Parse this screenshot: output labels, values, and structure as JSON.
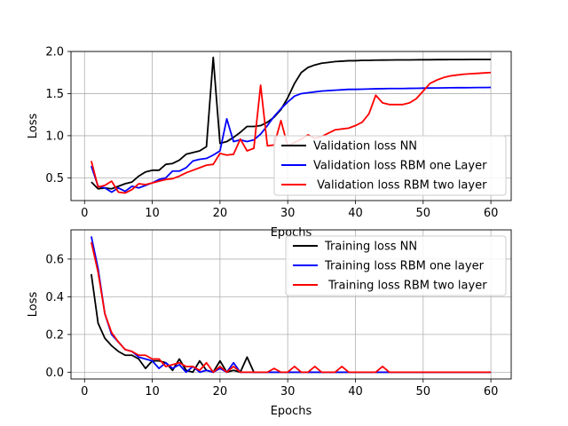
{
  "chart_data": [
    {
      "type": "line",
      "title": "",
      "xlabel": "Epochs",
      "ylabel": "Loss",
      "xlim": [
        -2,
        63
      ],
      "ylim": [
        0.23,
        2.0
      ],
      "xticks": [
        0,
        10,
        20,
        30,
        40,
        50,
        60
      ],
      "yticks": [
        0.5,
        1.0,
        1.5,
        2.0
      ],
      "ytick_labels": [
        "0.5",
        "1.0",
        "1.5",
        "2.0"
      ],
      "grid": true,
      "legend_placement": "lower-right",
      "x": [
        1,
        2,
        3,
        4,
        5,
        6,
        7,
        8,
        9,
        10,
        11,
        12,
        13,
        14,
        15,
        16,
        17,
        18,
        19,
        20,
        21,
        22,
        23,
        24,
        25,
        26,
        27,
        28,
        29,
        30,
        31,
        32,
        33,
        34,
        35,
        36,
        37,
        38,
        39,
        40,
        41,
        42,
        43,
        44,
        45,
        46,
        47,
        48,
        49,
        50,
        51,
        52,
        53,
        54,
        55,
        56,
        57,
        58,
        59,
        60
      ],
      "series": [
        {
          "name": "Validation loss NN",
          "color": "#000000",
          "values": [
            0.45,
            0.37,
            0.38,
            0.37,
            0.4,
            0.43,
            0.45,
            0.52,
            0.57,
            0.59,
            0.59,
            0.66,
            0.67,
            0.71,
            0.78,
            0.8,
            0.82,
            0.87,
            1.93,
            0.91,
            0.93,
            0.98,
            1.04,
            1.11,
            1.11,
            1.12,
            1.16,
            1.22,
            1.31,
            1.45,
            1.62,
            1.75,
            1.81,
            1.84,
            1.86,
            1.87,
            1.88,
            1.885,
            1.89,
            1.89,
            1.895,
            1.895,
            1.897,
            1.898,
            1.899,
            1.9,
            1.9,
            1.9,
            1.901,
            1.902,
            1.902,
            1.903,
            1.903,
            1.904,
            1.904,
            1.904,
            1.905,
            1.905,
            1.905,
            1.905
          ]
        },
        {
          "name": "Validation loss RBM one Layer",
          "color": "#0000ff",
          "values": [
            0.64,
            0.4,
            0.38,
            0.33,
            0.38,
            0.34,
            0.4,
            0.38,
            0.41,
            0.44,
            0.48,
            0.5,
            0.58,
            0.58,
            0.62,
            0.7,
            0.72,
            0.73,
            0.77,
            0.82,
            1.2,
            0.93,
            0.95,
            0.93,
            0.95,
            1.02,
            1.12,
            1.23,
            1.32,
            1.4,
            1.47,
            1.5,
            1.51,
            1.52,
            1.53,
            1.535,
            1.54,
            1.545,
            1.55,
            1.55,
            1.552,
            1.555,
            1.557,
            1.558,
            1.56,
            1.56,
            1.56,
            1.562,
            1.563,
            1.565,
            1.566,
            1.567,
            1.568,
            1.569,
            1.57,
            1.57,
            1.571,
            1.572,
            1.572,
            1.573
          ]
        },
        {
          "name": " Validation loss RBM two layer",
          "color": "#ff0000",
          "values": [
            0.7,
            0.39,
            0.41,
            0.46,
            0.33,
            0.32,
            0.36,
            0.43,
            0.42,
            0.44,
            0.46,
            0.48,
            0.49,
            0.52,
            0.56,
            0.59,
            0.62,
            0.65,
            0.66,
            0.79,
            0.77,
            0.78,
            0.96,
            0.82,
            0.85,
            1.6,
            0.88,
            0.89,
            1.18,
            0.88,
            0.92,
            0.96,
            1.01,
            0.97,
            0.99,
            1.03,
            1.07,
            1.08,
            1.09,
            1.12,
            1.16,
            1.26,
            1.48,
            1.39,
            1.37,
            1.37,
            1.37,
            1.39,
            1.44,
            1.53,
            1.62,
            1.66,
            1.69,
            1.71,
            1.72,
            1.73,
            1.735,
            1.74,
            1.745,
            1.75
          ]
        }
      ]
    },
    {
      "type": "line",
      "title": "",
      "xlabel": "Epochs",
      "ylabel": "Loss",
      "xlim": [
        -2,
        63
      ],
      "ylim": [
        -0.036,
        0.755
      ],
      "xticks": [
        0,
        10,
        20,
        30,
        40,
        50,
        60
      ],
      "yticks": [
        0.0,
        0.2,
        0.4,
        0.6
      ],
      "ytick_labels": [
        "0.0",
        "0.2",
        "0.4",
        "0.6"
      ],
      "grid": true,
      "legend_placement": "upper-right",
      "x": [
        1,
        2,
        3,
        4,
        5,
        6,
        7,
        8,
        9,
        10,
        11,
        12,
        13,
        14,
        15,
        16,
        17,
        18,
        19,
        20,
        21,
        22,
        23,
        24,
        25,
        26,
        27,
        28,
        29,
        30,
        31,
        32,
        33,
        34,
        35,
        36,
        37,
        38,
        39,
        40,
        41,
        42,
        43,
        44,
        45,
        46,
        47,
        48,
        49,
        50,
        51,
        52,
        53,
        54,
        55,
        56,
        57,
        58,
        59,
        60
      ],
      "series": [
        {
          "name": "Training loss NN",
          "color": "#000000",
          "values": [
            0.52,
            0.26,
            0.18,
            0.14,
            0.11,
            0.09,
            0.09,
            0.07,
            0.02,
            0.06,
            0.06,
            0.05,
            0.01,
            0.07,
            0.01,
            0.0,
            0.06,
            0.01,
            0.0,
            0.06,
            0.0,
            0.01,
            0.0,
            0.08,
            0.0,
            0.0,
            0.0,
            0.0,
            0.0,
            0.0,
            0.0,
            0.0,
            0.0,
            0.0,
            0.0,
            0.0,
            0.0,
            0.0,
            0.0,
            0.0,
            0.0,
            0.0,
            0.0,
            0.0,
            0.0,
            0.0,
            0.0,
            0.0,
            0.0,
            0.0,
            0.0,
            0.0,
            0.0,
            0.0,
            0.0,
            0.0,
            0.0,
            0.0,
            0.0,
            0.0
          ]
        },
        {
          "name": "Training loss RBM one layer",
          "color": "#0000ff",
          "values": [
            0.72,
            0.55,
            0.31,
            0.2,
            0.16,
            0.12,
            0.11,
            0.08,
            0.07,
            0.06,
            0.02,
            0.05,
            0.02,
            0.04,
            0.0,
            0.03,
            0.0,
            0.01,
            0.0,
            0.02,
            0.0,
            0.05,
            0.0,
            0.0,
            0.0,
            0.0,
            0.0,
            0.0,
            0.0,
            0.0,
            0.0,
            0.0,
            0.0,
            0.0,
            0.0,
            0.0,
            0.0,
            0.0,
            0.0,
            0.0,
            0.0,
            0.0,
            0.0,
            0.0,
            0.0,
            0.0,
            0.0,
            0.0,
            0.0,
            0.0,
            0.0,
            0.0,
            0.0,
            0.0,
            0.0,
            0.0,
            0.0,
            0.0,
            0.0,
            0.0
          ]
        },
        {
          "name": " Training loss RBM two layer",
          "color": "#ff0000",
          "values": [
            0.69,
            0.53,
            0.31,
            0.21,
            0.16,
            0.12,
            0.11,
            0.09,
            0.09,
            0.07,
            0.07,
            0.03,
            0.04,
            0.05,
            0.03,
            0.03,
            0.01,
            0.05,
            0.0,
            0.03,
            0.0,
            0.03,
            0.0,
            0.0,
            0.0,
            0.0,
            0.0,
            0.02,
            0.0,
            0.0,
            0.03,
            0.0,
            0.0,
            0.03,
            0.0,
            0.0,
            0.0,
            0.03,
            0.0,
            0.0,
            0.0,
            0.0,
            0.0,
            0.03,
            0.0,
            0.0,
            0.0,
            0.0,
            0.0,
            0.0,
            0.0,
            0.0,
            0.0,
            0.0,
            0.0,
            0.0,
            0.0,
            0.0,
            0.0,
            0.0
          ]
        }
      ]
    }
  ]
}
